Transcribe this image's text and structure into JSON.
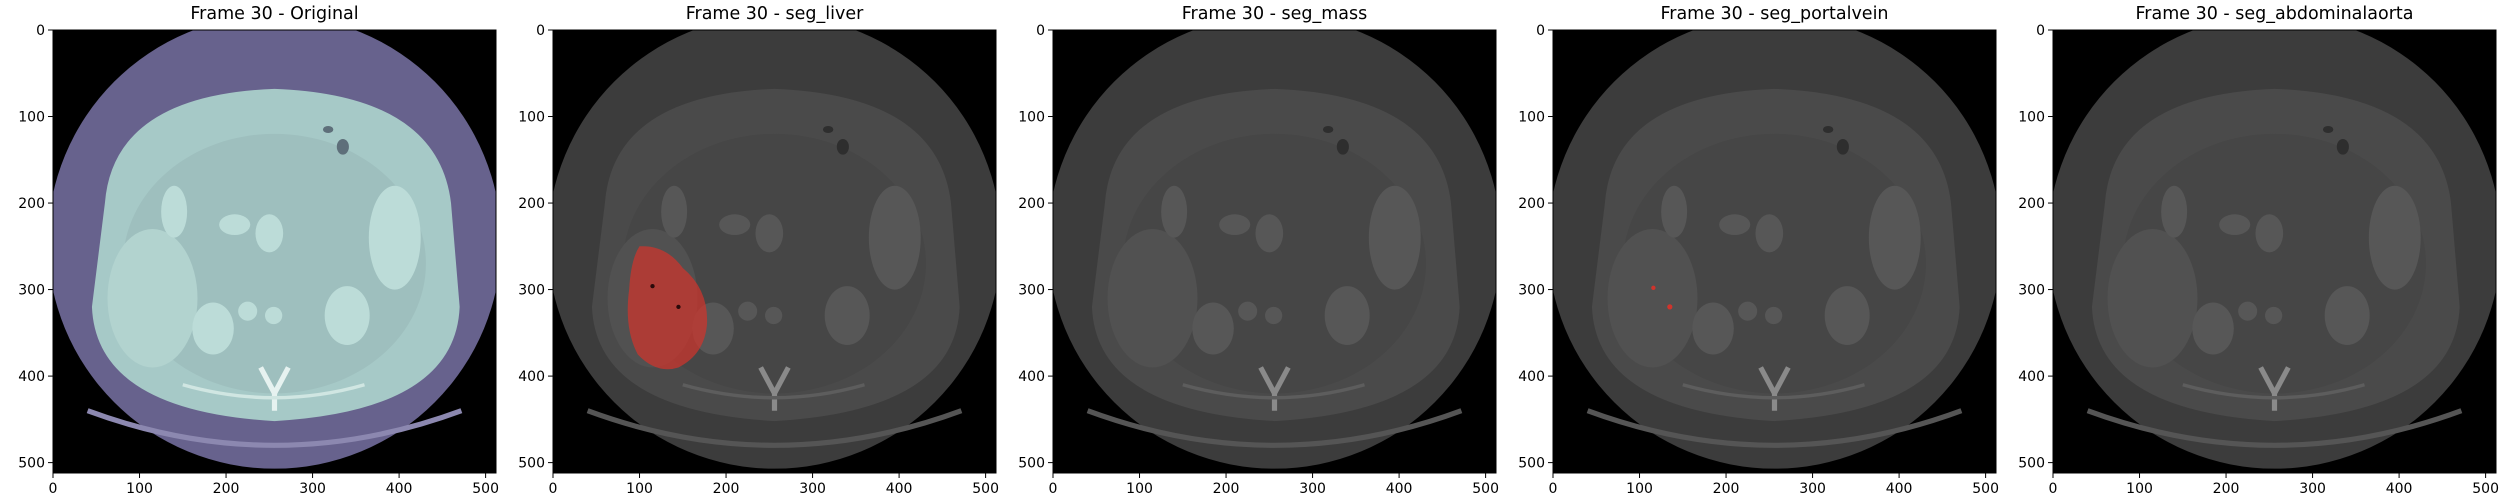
{
  "panels": [
    {
      "title": "Frame 30 - Original",
      "style": "original",
      "overlay": "none"
    },
    {
      "title": "Frame 30 - seg_liver",
      "style": "gray",
      "overlay": "liver"
    },
    {
      "title": "Frame 30 - seg_mass",
      "style": "gray",
      "overlay": "none"
    },
    {
      "title": "Frame 30 - seg_portalvein",
      "style": "gray",
      "overlay": "portalvein"
    },
    {
      "title": "Frame 30 - seg_abdominalaorta",
      "style": "gray",
      "overlay": "none"
    }
  ],
  "axes": {
    "x_ticks": [
      "0",
      "100",
      "200",
      "300",
      "400",
      "500"
    ],
    "y_ticks": [
      "0",
      "100",
      "200",
      "300",
      "400",
      "500"
    ],
    "image_size": 512
  },
  "colors": {
    "overlay_red": "#d0342c",
    "original_tissue": "#a6c9c7",
    "original_ring": "#67628d",
    "gray_ring": "#3c3c3c",
    "gray_tissue": "#4a4a4a"
  }
}
